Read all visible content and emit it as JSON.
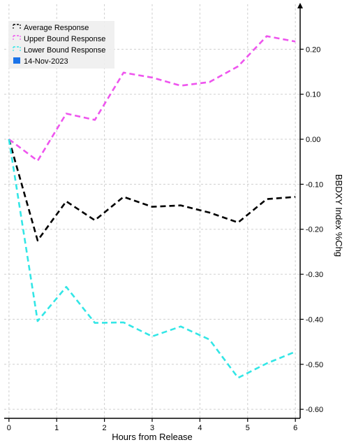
{
  "chart_data": {
    "type": "line",
    "title": "",
    "xlabel": "Hours from Release",
    "ylabel": "BBDXY Index %Chg",
    "xlim": [
      -0.1,
      6.1
    ],
    "ylim": [
      -0.62,
      0.3
    ],
    "x_ticks": [
      0,
      1,
      2,
      3,
      4,
      5,
      6
    ],
    "x_tick_labels": [
      "0",
      "1",
      "2",
      "3",
      "4",
      "5",
      "6"
    ],
    "y_ticks": [
      0.2,
      0.1,
      0.0,
      -0.1,
      -0.2,
      -0.3,
      -0.4,
      -0.5,
      -0.6
    ],
    "y_tick_labels": [
      "0.20",
      "0.10",
      "0.00",
      "-0.10",
      "-0.20",
      "-0.30",
      "-0.40",
      "-0.50",
      "-0.60"
    ],
    "grid": true,
    "legend_position": "top-left",
    "series": [
      {
        "name": "Average Response",
        "color": "#000000",
        "style": "dashed",
        "x": [
          0,
          0.6,
          1.2,
          1.8,
          2.4,
          3.0,
          3.6,
          4.2,
          4.8,
          5.4,
          6.0
        ],
        "values": [
          0.0,
          -0.225,
          -0.138,
          -0.18,
          -0.128,
          -0.15,
          -0.147,
          -0.163,
          -0.185,
          -0.133,
          -0.128
        ]
      },
      {
        "name": "Upper Bound Response",
        "color": "#ee55ee",
        "style": "dashed",
        "x": [
          0,
          0.6,
          1.2,
          1.8,
          2.4,
          3.0,
          3.6,
          4.2,
          4.8,
          5.4,
          6.0
        ],
        "values": [
          0.0,
          -0.048,
          0.057,
          0.043,
          0.148,
          0.137,
          0.119,
          0.127,
          0.162,
          0.229,
          0.217
        ]
      },
      {
        "name": "Lower Bound Response",
        "color": "#33e6e6",
        "style": "dashed",
        "x": [
          0,
          0.6,
          1.2,
          1.8,
          2.4,
          3.0,
          3.6,
          4.2,
          4.8,
          5.4,
          6.0
        ],
        "values": [
          0.0,
          -0.404,
          -0.328,
          -0.408,
          -0.407,
          -0.438,
          -0.416,
          -0.445,
          -0.53,
          -0.498,
          -0.472
        ]
      }
    ],
    "date_marker": {
      "name": "14-Nov-2023",
      "color": "#1a73e8"
    },
    "colors": {
      "background": "#ffffff",
      "grid": "#cfcfcf",
      "axis": "#000000",
      "legend_background": "#efefef"
    }
  }
}
